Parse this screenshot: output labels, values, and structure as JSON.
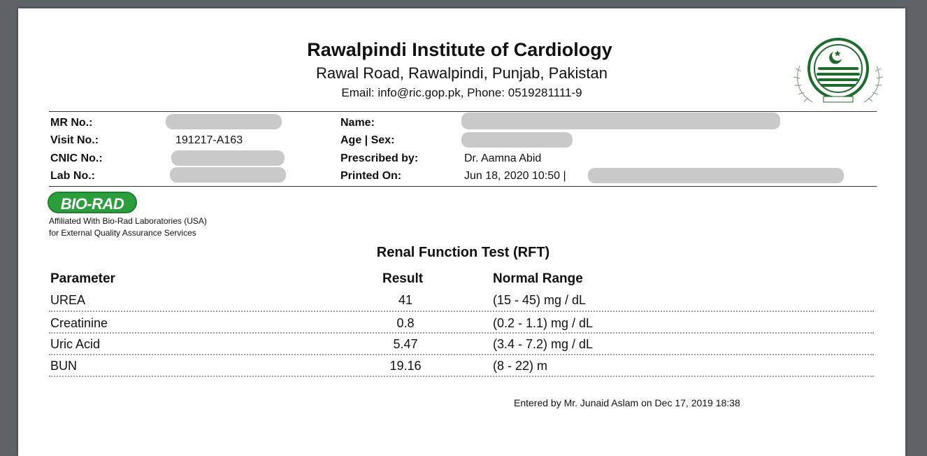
{
  "header": {
    "institute": "Rawalpindi Institute of Cardiology",
    "address": "Rawal Road, Rawalpindi, Punjab, Pakistan",
    "contact": "Email: info@ric.gop.pk, Phone: 0519281111-9"
  },
  "patient": {
    "mr_label": "MR No.:",
    "visit_label": "Visit No.:",
    "visit_value": "191217-A163",
    "cnic_label": "CNIC No.:",
    "lab_label": "Lab No.:",
    "name_label": "Name:",
    "age_sex_label": "Age | Sex:",
    "prescribed_label": "Prescribed by:",
    "prescribed_value": "Dr. Aamna Abid",
    "printed_label": "Printed On:",
    "printed_value": "Jun 18, 2020 10:50 |"
  },
  "biorad": {
    "logo_text": "BIO-RAD",
    "affil_line1": "Affiliated With Bio-Rad Laboratories (USA)",
    "affil_line2": "for External Quality Assurance Services"
  },
  "report": {
    "title": "Renal Function Test (RFT)",
    "headers": {
      "parameter": "Parameter",
      "result": "Result",
      "range": "Normal Range"
    },
    "rows": [
      {
        "parameter": "UREA",
        "result": "41",
        "range": "(15 - 45) mg / dL"
      },
      {
        "parameter": "Creatinine",
        "result": "0.8",
        "range": "(0.2 - 1.1) mg / dL"
      },
      {
        "parameter": "Uric Acid",
        "result": "5.47",
        "range": "(3.4 - 7.2) mg / dL"
      },
      {
        "parameter": "BUN",
        "result": "19.16",
        "range": "(8 - 22) m"
      }
    ],
    "entered_by": "Entered by Mr. Junaid Aslam on Dec 17, 2019 18:38"
  },
  "colors": {
    "biorad_green": "#2a9d3c",
    "emblem_green": "#1e6b2e",
    "redaction": "#c9c9c9"
  },
  "icons": {
    "emblem": "punjab-government-emblem-icon"
  }
}
